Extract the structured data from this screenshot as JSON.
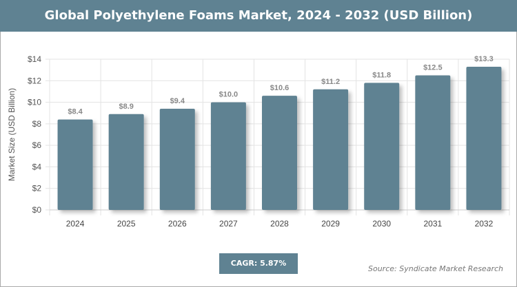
{
  "chart_data": {
    "type": "bar",
    "title": "Global Polyethylene Foams Market, 2024 - 2032 (USD Billion)",
    "xlabel": "",
    "ylabel": "Market Size (USD Billion)",
    "categories": [
      "2024",
      "2025",
      "2026",
      "2027",
      "2028",
      "2029",
      "2030",
      "2031",
      "2032"
    ],
    "values": [
      8.4,
      8.9,
      9.4,
      10.0,
      10.6,
      11.2,
      11.8,
      12.5,
      13.3
    ],
    "data_labels": [
      "$8.4",
      "$8.9",
      "$9.4",
      "$10.0",
      "$10.6",
      "$11.2",
      "$11.8",
      "$12.5",
      "$13.3"
    ],
    "ylim": [
      0,
      14
    ],
    "yticks": [
      "$0",
      "$2",
      "$4",
      "$6",
      "$8",
      "$10",
      "$12",
      "$14"
    ],
    "grid": true,
    "bar_color": "#5f8292"
  },
  "cagr": "CAGR: 5.87%",
  "source": "Source: Syndicate Market Research"
}
